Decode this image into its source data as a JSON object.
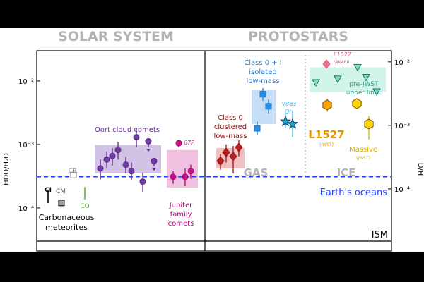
{
  "chart_data": {
    "type": "scatter",
    "yscale": "log",
    "ylim": [
      3e-05,
      0.03
    ],
    "ylabel_left": "HDO/H₂O",
    "ylabel_right": "D/H",
    "yticks_left": [
      {
        "v": 0.0001,
        "label": "10⁻⁴"
      },
      {
        "v": 0.001,
        "label": "10⁻³"
      },
      {
        "v": 0.01,
        "label": "10⁻²"
      }
    ],
    "yticks_right": [
      {
        "v": 0.0002,
        "label": "10⁻⁴"
      },
      {
        "v": 0.002,
        "label": "10⁻³"
      },
      {
        "v": 0.02,
        "label": "10⁻²"
      }
    ],
    "panels": [
      {
        "title": "SOLAR SYSTEM",
        "title_color": "#b3b3b3"
      },
      {
        "title": "PROTOSTARS",
        "title_color": "#b3b3b3"
      }
    ],
    "reference_line": {
      "label": "Earth's oceans",
      "value": 0.00031,
      "color": "#1f3fff"
    },
    "groups": [
      {
        "id": "ci",
        "labels": [
          "CI"
        ],
        "color": "#000000",
        "markers": [
          {
            "x": 68,
            "v": 0.00015,
            "shape": "bar"
          }
        ]
      },
      {
        "id": "cm",
        "labels": [
          "CM"
        ],
        "color": "#000000",
        "markers": [
          {
            "x": 87,
            "v": 0.00012,
            "shape": "square",
            "fill": "#9a9a9a"
          }
        ]
      },
      {
        "id": "cr",
        "labels": [
          "CR"
        ],
        "color": "#7a7a7a",
        "markers": [
          {
            "x": 104,
            "v": 0.00033,
            "shape": "square",
            "fill": "#ffffff"
          }
        ]
      },
      {
        "id": "co",
        "labels": [
          "CO"
        ],
        "color": "#5fae3f",
        "markers": [
          {
            "x": 120,
            "v": 0.00017,
            "shape": "bar"
          }
        ]
      },
      {
        "id": "carbonaceous",
        "labels": [
          "Carbonaceous",
          "meteorites"
        ],
        "color": "#000000",
        "markers": []
      },
      {
        "id": "oort",
        "labels": [
          "Oort cloud comets"
        ],
        "color": "#5b2a86",
        "fill": "#6f3da6",
        "box": {
          "x0": 134,
          "x1": 228,
          "v0": 0.00035,
          "v1": 0.00098,
          "color": "#c9b7e2"
        },
        "markers": [
          {
            "x": 142,
            "v": 0.00042,
            "lo": 0.00028,
            "hi": 0.00058
          },
          {
            "x": 151,
            "v": 0.00058,
            "lo": 0.00042,
            "hi": 0.00078
          },
          {
            "x": 159,
            "v": 0.00066,
            "lo": 0.00047,
            "hi": 0.00088
          },
          {
            "x": 167,
            "v": 0.00082,
            "lo": 0.00058,
            "hi": 0.0011
          },
          {
            "x": 178,
            "v": 0.00048,
            "lo": 0.00035,
            "hi": 0.00064
          },
          {
            "x": 186,
            "v": 0.00038,
            "lo": 0.00027,
            "hi": 0.00052
          },
          {
            "x": 193,
            "v": 0.0013,
            "lo": 0.0009,
            "hi": 0.0018
          },
          {
            "x": 202,
            "v": 0.00026,
            "lo": 0.00018,
            "hi": 0.00036
          },
          {
            "x": 210,
            "v": 0.00112,
            "lo": 0.0009,
            "hi": 0.00112,
            "upper": true
          },
          {
            "x": 218,
            "v": 0.00055,
            "lo": 0.00045,
            "hi": 0.00055,
            "upper": true
          }
        ]
      },
      {
        "id": "jfc",
        "labels": [
          "Jupiter",
          "family",
          "comets"
        ],
        "color": "#b5007a",
        "fill": "#c71585",
        "box": {
          "x0": 236,
          "x1": 280,
          "v0": 0.00021,
          "v1": 0.00082,
          "color": "#f0b6dc"
        },
        "markers": [
          {
            "x": 245,
            "v": 0.00031,
            "lo": 0.00024,
            "hi": 0.00038
          },
          {
            "x": 253,
            "v": 0.00105,
            "lo": 0.0009,
            "hi": 0.00105
          },
          {
            "x": 262,
            "v": 0.00031,
            "lo": 0.00022,
            "hi": 0.00042
          },
          {
            "x": 270,
            "v": 0.00038,
            "lo": 0.00029,
            "hi": 0.00048
          }
        ]
      },
      {
        "id": "67p",
        "labels": [
          "67P"
        ],
        "color": "#c71585",
        "markers": []
      },
      {
        "id": "class0_clustered",
        "labels": [
          "Class 0",
          "clustered",
          "low-mass"
        ],
        "color": "#a01515",
        "fill": "#b22222",
        "box": {
          "x0": 306,
          "x1": 346,
          "v0": 0.00042,
          "v1": 0.00088,
          "color": "#efb4b4"
        },
        "markers": [
          {
            "x": 312,
            "v": 0.00055,
            "lo": 0.0004,
            "hi": 0.0007,
            "shape": "diamond"
          },
          {
            "x": 320,
            "v": 0.00075,
            "lo": 0.00052,
            "hi": 0.001,
            "shape": "diamond"
          },
          {
            "x": 330,
            "v": 0.00065,
            "lo": 0.00035,
            "hi": 0.00095,
            "shape": "diamond"
          },
          {
            "x": 338,
            "v": 0.0009,
            "lo": 0.00065,
            "hi": 0.0012,
            "shape": "diamond"
          }
        ]
      },
      {
        "id": "class01_isolated",
        "labels": [
          "Class 0 + I",
          "isolated",
          "low-mass"
        ],
        "color": "#1874cd",
        "fill": "#2a8fe0",
        "box": {
          "x0": 356,
          "x1": 390,
          "v0": 0.0021,
          "v1": 0.0072,
          "color": "#bcd8f3"
        },
        "markers": [
          {
            "x": 364,
            "v": 0.0018,
            "lo": 0.0014,
            "hi": 0.0023,
            "shape": "square"
          },
          {
            "x": 372,
            "v": 0.0062,
            "lo": 0.0049,
            "hi": 0.0077,
            "shape": "square"
          },
          {
            "x": 380,
            "v": 0.004,
            "lo": 0.0031,
            "hi": 0.0051,
            "shape": "square"
          }
        ]
      },
      {
        "id": "v883",
        "labels": [
          "V883",
          "Ori"
        ],
        "color": "#41b6e6",
        "fill": "#1fa4d8",
        "markers": [
          {
            "x": 404,
            "v": 0.0023,
            "lo": 0.0018,
            "hi": 0.003,
            "shape": "star"
          },
          {
            "x": 414,
            "v": 0.0021,
            "lo": 0.0013,
            "hi": 0.0031,
            "shape": "star"
          }
        ]
      },
      {
        "id": "l1527_akari",
        "labels": [
          "L1527",
          "(AKARI)"
        ],
        "color": "#e0607e",
        "fill": "#e8708a",
        "markers": [
          {
            "x": 462,
            "v": 0.0185,
            "shape": "diamond"
          }
        ]
      },
      {
        "id": "pre_jwst",
        "labels": [
          "pre-JWST",
          "upper lims."
        ],
        "color": "#2a9d8f",
        "fill": "#7fe0c4",
        "box": {
          "x0": 438,
          "x1": 546,
          "v0": 0.0067,
          "v1": 0.0165,
          "color": "#c9f2e4"
        },
        "markers": [
          {
            "x": 447,
            "v": 0.0095,
            "shape": "triangle-down"
          },
          {
            "x": 478,
            "v": 0.0108,
            "shape": "triangle-down"
          },
          {
            "x": 506,
            "v": 0.0165,
            "shape": "triangle-down"
          },
          {
            "x": 518,
            "v": 0.0115,
            "shape": "triangle-down"
          },
          {
            "x": 533,
            "v": 0.0068,
            "shape": "triangle-down"
          }
        ]
      },
      {
        "id": "l1527_jwst",
        "labels": [
          "L1527",
          "(JWST)"
        ],
        "color": "#e59400",
        "fill": "#ffa500",
        "markers": [
          {
            "x": 463,
            "v": 0.0042,
            "lo": 0.0033,
            "hi": 0.0053,
            "shape": "hexagon"
          }
        ]
      },
      {
        "id": "massive",
        "labels": [
          "Massive",
          "(JWST)"
        ],
        "color": "#d4b000",
        "fill": "#ffd400",
        "markers": [
          {
            "x": 505,
            "v": 0.0044,
            "lo": 0.0037,
            "hi": 0.0052,
            "shape": "hexagon"
          },
          {
            "x": 522,
            "v": 0.0021,
            "lo": 0.0012,
            "hi": 0.0028,
            "shape": "hexagon"
          }
        ]
      }
    ],
    "annotations": {
      "gas": "GAS",
      "ice": "ICE",
      "ism": "ISM"
    }
  }
}
